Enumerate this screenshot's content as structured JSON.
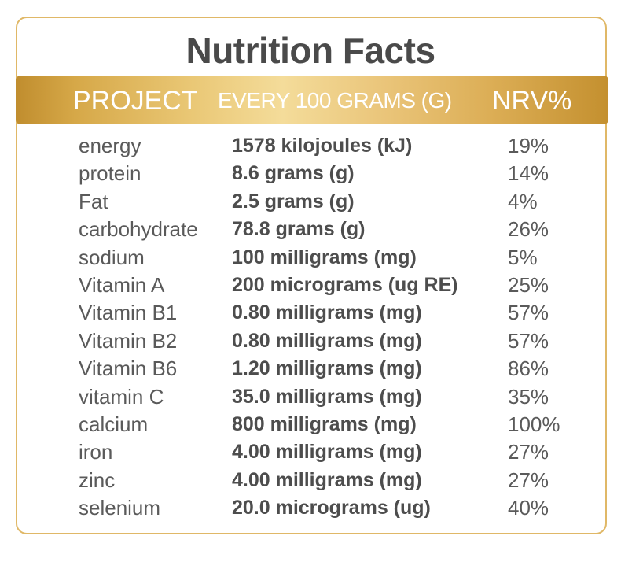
{
  "title": "Nutrition Facts",
  "header": {
    "project": "PROJECT",
    "per100g": "EVERY 100 GRAMS (G)",
    "nrv": "NRV%"
  },
  "rows": [
    {
      "name": "energy",
      "amount": "1578 kilojoules (kJ)",
      "nrv": "19%"
    },
    {
      "name": "protein",
      "amount": "8.6 grams (g)",
      "nrv": "14%"
    },
    {
      "name": "Fat",
      "amount": "2.5 grams (g)",
      "nrv": "4%"
    },
    {
      "name": "carbohydrate",
      "amount": "78.8 grams (g)",
      "nrv": "26%"
    },
    {
      "name": "sodium",
      "amount": "100 milligrams (mg)",
      "nrv": "5%"
    },
    {
      "name": "Vitamin A",
      "amount": "200 micrograms (ug RE)",
      "nrv": "25%"
    },
    {
      "name": "Vitamin B1",
      "amount": "0.80 milligrams (mg)",
      "nrv": "57%"
    },
    {
      "name": "Vitamin B2",
      "amount": "0.80 milligrams (mg)",
      "nrv": "57%"
    },
    {
      "name": "Vitamin B6",
      "amount": "1.20 milligrams (mg)",
      "nrv": "86%"
    },
    {
      "name": "vitamin C",
      "amount": "35.0 milligrams (mg)",
      "nrv": "35%"
    },
    {
      "name": "calcium",
      "amount": "800 milligrams (mg)",
      "nrv": "100%"
    },
    {
      "name": "iron",
      "amount": "4.00 milligrams (mg)",
      "nrv": "27%"
    },
    {
      "name": "zinc",
      "amount": "4.00 milligrams (mg)",
      "nrv": "27%"
    },
    {
      "name": "selenium",
      "amount": "20.0 micrograms (ug)",
      "nrv": "40%"
    }
  ],
  "colors": {
    "border": "#e0b867",
    "band_gold_dark": "#c08d2e",
    "band_gold_light": "#f4dc9a",
    "title_text": "#4a4a4a",
    "body_text": "#555555"
  }
}
